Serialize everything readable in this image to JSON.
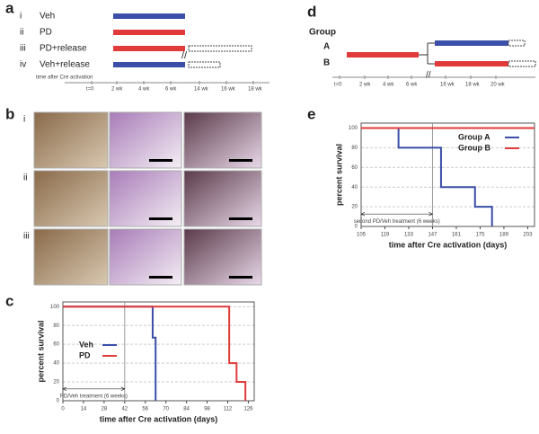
{
  "panel_a": {
    "label": "a",
    "rows": [
      {
        "numeral": "i",
        "name": "Veh"
      },
      {
        "numeral": "ii",
        "name": "PD"
      },
      {
        "numeral": "iii",
        "name": "PD+release"
      },
      {
        "numeral": "iv",
        "name": "Veh+release"
      }
    ],
    "axis_title": "time after Cre activation",
    "ticks": [
      "t=0",
      "2 wk",
      "4 wk",
      "6 wk",
      "14 wk",
      "16 wk",
      "18 wk"
    ]
  },
  "panel_b": {
    "label": "b",
    "rows": [
      "i",
      "ii",
      "iii"
    ]
  },
  "panel_d": {
    "label": "d",
    "group_title": "Group",
    "groups": [
      "A",
      "B"
    ],
    "ticks": [
      "t=0",
      "2 wk",
      "4 wk",
      "6 wk",
      "16 wk",
      "18 wk",
      "20 wk"
    ]
  },
  "chart_data": [
    {
      "type": "survival",
      "panel_label": "c",
      "x_label": "time after Cre activation (days)",
      "y_label": "percent survival",
      "xlim": [
        0,
        130
      ],
      "xticks": [
        0,
        14,
        28,
        42,
        56,
        70,
        84,
        98,
        112,
        126
      ],
      "ylim": [
        0,
        105
      ],
      "yticks": [
        0,
        20,
        40,
        60,
        80,
        100
      ],
      "grid": true,
      "treatment_span": [
        0,
        42
      ],
      "treatment_label": "PD/Veh treatment (6 weeks)",
      "legend": "lower-left",
      "series": [
        {
          "name": "Veh",
          "color": "#3b4ea8",
          "x": [
            0,
            61,
            63
          ],
          "values": [
            100,
            67,
            0
          ]
        },
        {
          "name": "PD",
          "color": "#e03a3a",
          "x": [
            0,
            113,
            118,
            124
          ],
          "values": [
            100,
            40,
            20,
            0
          ]
        }
      ]
    },
    {
      "type": "survival",
      "panel_label": "e",
      "x_label": "time after Cre activation (days)",
      "y_label": "percent survival",
      "xlim": [
        105,
        207
      ],
      "xticks": [
        105,
        119,
        133,
        147,
        161,
        175,
        189,
        203
      ],
      "ylim": [
        0,
        105
      ],
      "yticks": [
        0,
        20,
        40,
        60,
        80,
        100
      ],
      "grid": true,
      "treatment_span": [
        105,
        147
      ],
      "treatment_label": "second PD/Veh treatment (6 weeks)",
      "legend": "upper-right",
      "series": [
        {
          "name": "Group A",
          "color": "#3b4ea8",
          "x": [
            105,
            127,
            152,
            172,
            182
          ],
          "values": [
            100,
            80,
            40,
            20,
            0
          ]
        },
        {
          "name": "Group B",
          "color": "#e03a3a",
          "x": [
            105,
            207
          ],
          "values": [
            100,
            100
          ]
        }
      ]
    }
  ]
}
